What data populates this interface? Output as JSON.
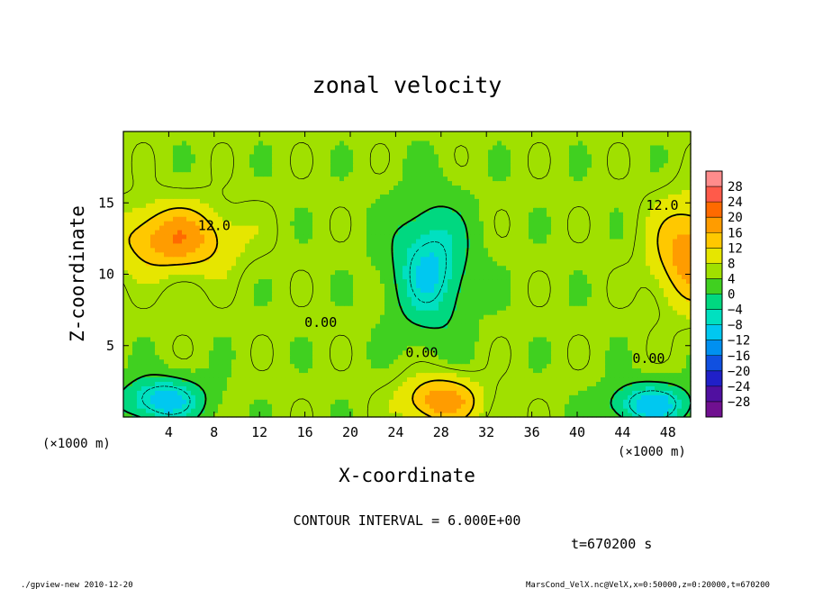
{
  "chart_data": {
    "type": "heatmap",
    "title": "zonal velocity",
    "xlabel": "X-coordinate",
    "ylabel": "Z-coordinate",
    "x_unit_label": "(×1000 m)",
    "y_unit_label": "(×1000 m)",
    "xlim": [
      0,
      50
    ],
    "ylim": [
      0,
      20
    ],
    "x_ticks": [
      4,
      8,
      12,
      16,
      20,
      24,
      28,
      32,
      36,
      40,
      44,
      48
    ],
    "y_ticks": [
      5,
      10,
      15
    ],
    "contour_interval_text": "CONTOUR INTERVAL = 6.000E+00",
    "time_text": "t=670200 s",
    "contour_labels": [
      {
        "text": "12.0",
        "x": 8,
        "y": 13.1
      },
      {
        "text": "0.00",
        "x": 17.4,
        "y": 6.3
      },
      {
        "text": "0.00",
        "x": 26.3,
        "y": 4.2
      },
      {
        "text": "0.00",
        "x": 46.3,
        "y": 3.8
      },
      {
        "text": "12.0",
        "x": 47.5,
        "y": 14.5
      }
    ],
    "colorbar": {
      "levels": [
        "28",
        "24",
        "20",
        "16",
        "12",
        "8",
        "4",
        "0",
        "−4",
        "−8",
        "−12",
        "−16",
        "−20",
        "−24",
        "−28"
      ],
      "colors": [
        "#ff8c8c",
        "#ff5a4a",
        "#ff6a00",
        "#ff9c00",
        "#ffc800",
        "#e6e600",
        "#a0e000",
        "#40d020",
        "#00d880",
        "#00e0c0",
        "#00c8f0",
        "#0090f0",
        "#1050e0",
        "#2020c8",
        "#5010a0",
        "#701090"
      ]
    },
    "features": [
      {
        "x": 4.5,
        "y": 12.5,
        "value": 16,
        "sx": 5.0,
        "sy": 2.3
      },
      {
        "x": 50,
        "y": 11.5,
        "value": 16,
        "sx": 3.2,
        "sy": 3.5
      },
      {
        "x": 28,
        "y": 1.2,
        "value": 16,
        "sx": 3.3,
        "sy": 1.7
      },
      {
        "x": 27,
        "y": 10.5,
        "value": -12,
        "sx": 3.3,
        "sy": 4.4
      },
      {
        "x": 3.5,
        "y": 1.2,
        "value": -14,
        "sx": 3.6,
        "sy": 1.6
      },
      {
        "x": 46.5,
        "y": 0.9,
        "value": -14,
        "sx": 3.6,
        "sy": 1.5
      }
    ],
    "background_value": 5
  },
  "footer": {
    "left": "./gpview-new   2010-12-20",
    "right": "MarsCond_VelX.nc@VelX,x=0:50000,z=0:20000,t=670200"
  }
}
